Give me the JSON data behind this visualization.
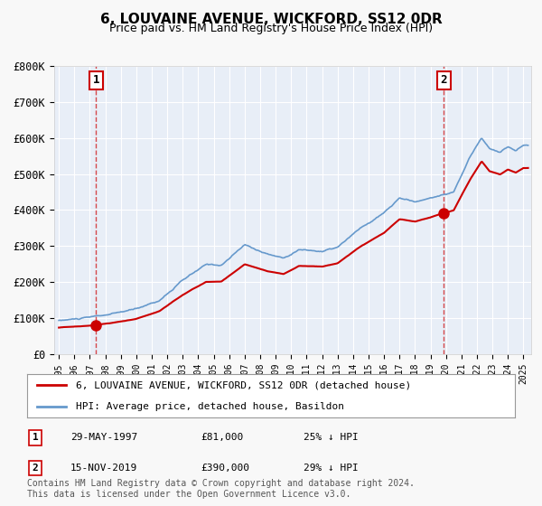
{
  "title": "6, LOUVAINE AVENUE, WICKFORD, SS12 0DR",
  "subtitle": "Price paid vs. HM Land Registry's House Price Index (HPI)",
  "legend_label_red": "6, LOUVAINE AVENUE, WICKFORD, SS12 0DR (detached house)",
  "legend_label_blue": "HPI: Average price, detached house, Basildon",
  "footnote": "Contains HM Land Registry data © Crown copyright and database right 2024.\nThis data is licensed under the Open Government Licence v3.0.",
  "sale1_label": "1",
  "sale1_date": "29-MAY-1997",
  "sale1_price": "£81,000",
  "sale1_hpi": "25% ↓ HPI",
  "sale1_year": 1997.41,
  "sale1_value": 81000,
  "sale2_label": "2",
  "sale2_date": "15-NOV-2019",
  "sale2_price": "£390,000",
  "sale2_hpi": "29% ↓ HPI",
  "sale2_year": 2019.87,
  "sale2_value": 390000,
  "ylim": [
    0,
    800000
  ],
  "yticks": [
    0,
    100000,
    200000,
    300000,
    400000,
    500000,
    600000,
    700000,
    800000
  ],
  "ytick_labels": [
    "£0",
    "£100K",
    "£200K",
    "£300K",
    "£400K",
    "£500K",
    "£600K",
    "£700K",
    "£800K"
  ],
  "xlim_start": 1995.0,
  "xlim_end": 2025.5,
  "background_color": "#f0f4fa",
  "plot_bg_color": "#e8eef7",
  "grid_color": "#ffffff",
  "red_color": "#cc0000",
  "blue_color": "#6699cc",
  "marker_color": "#cc0000"
}
